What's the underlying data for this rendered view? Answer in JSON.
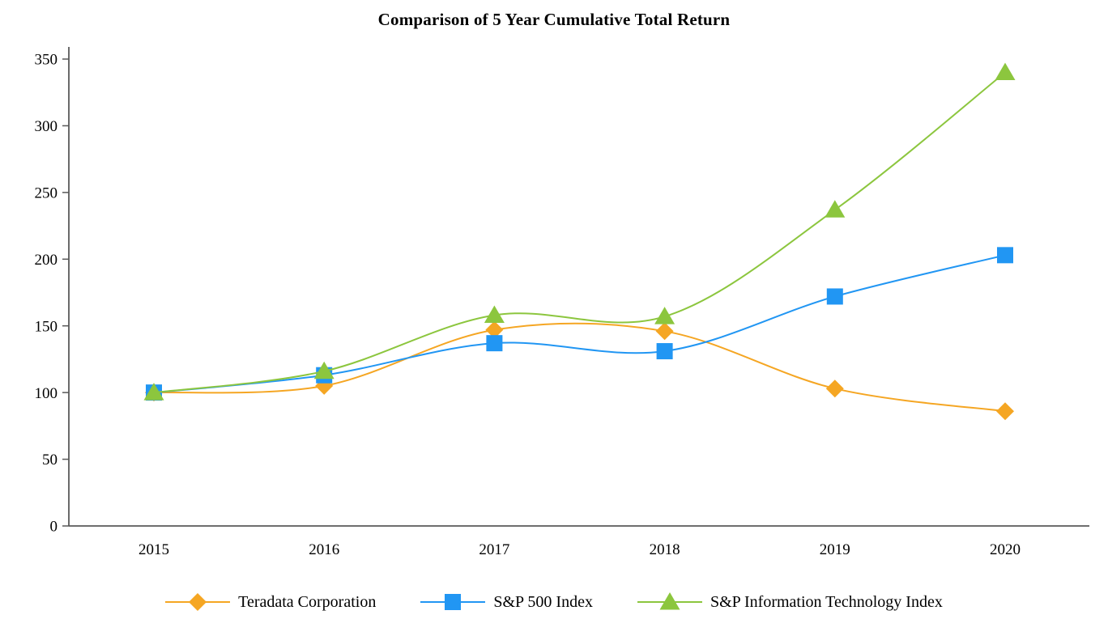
{
  "chart_data": {
    "type": "line",
    "title": "Comparison of 5 Year Cumulative Total Return",
    "categories": [
      "2015",
      "2016",
      "2017",
      "2018",
      "2019",
      "2020"
    ],
    "series": [
      {
        "name": "Teradata Corporation",
        "marker": "diamond",
        "color": "#F5A623",
        "values": [
          100,
          105,
          147,
          146,
          103,
          86
        ]
      },
      {
        "name": "S&P 500 Index",
        "marker": "square",
        "color": "#2196F3",
        "values": [
          100,
          113,
          137,
          131,
          172,
          203
        ]
      },
      {
        "name": "S&P Information Technology Index",
        "marker": "triangle",
        "color": "#8CC63E",
        "values": [
          100,
          116,
          158,
          157,
          237,
          340
        ]
      }
    ],
    "xlabel": "",
    "ylabel": "",
    "ylim": [
      0,
      350
    ],
    "yticks": [
      0,
      50,
      100,
      150,
      200,
      250,
      300,
      350
    ],
    "grid": false,
    "legend_position": "bottom"
  },
  "style": {
    "axis_color": "#595959",
    "background": "#ffffff"
  }
}
